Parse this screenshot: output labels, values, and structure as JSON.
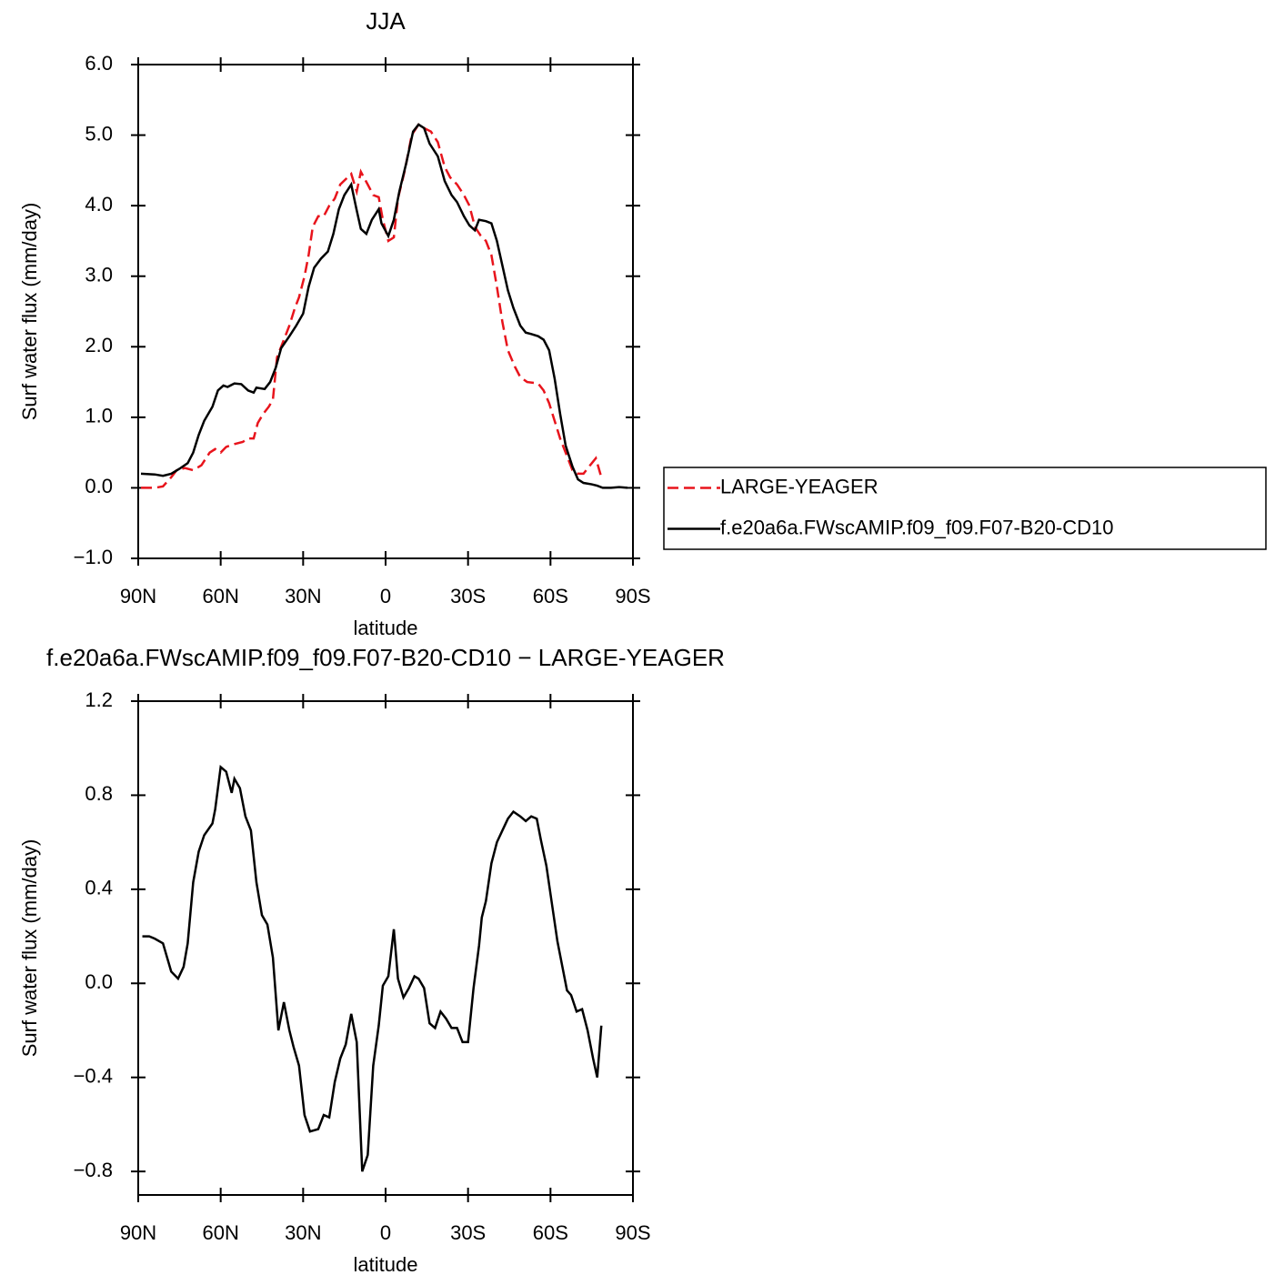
{
  "chart_data": [
    {
      "type": "line",
      "title": "JJA",
      "xlabel": "latitude",
      "ylabel": "Surf water flux (mm/day)",
      "xlim": [
        90,
        -90
      ],
      "xticks": [
        {
          "value": 90,
          "label": "90N"
        },
        {
          "value": 60,
          "label": "60N"
        },
        {
          "value": 30,
          "label": "30N"
        },
        0,
        {
          "value": -30,
          "label": "30S"
        },
        {
          "value": -60,
          "label": "60S"
        },
        {
          "value": -90,
          "label": "90S"
        }
      ],
      "ylim": [
        -1,
        6
      ],
      "yticks": [
        {
          "value": -1,
          "label": "−1.0"
        },
        {
          "value": 0,
          "label": "0.0"
        },
        {
          "value": 1,
          "label": "1.0"
        },
        {
          "value": 2,
          "label": "2.0"
        },
        {
          "value": 3,
          "label": "3.0"
        },
        {
          "value": 4,
          "label": "4.0"
        },
        {
          "value": 5,
          "label": "5.0"
        },
        {
          "value": 6,
          "label": "6.0"
        }
      ],
      "legend": "right",
      "series": [
        {
          "name": "LARGE-YEAGER",
          "color": "#e8141c",
          "dash": true,
          "x": [
            89,
            84,
            81,
            78,
            76,
            73,
            70,
            67,
            64,
            62,
            60,
            58,
            55,
            52,
            50,
            48,
            46.5,
            44.5,
            42.5,
            41,
            39.5,
            37,
            35,
            33,
            31.5,
            29.5,
            28,
            26.5,
            24.5,
            22.5,
            20.5,
            18.5,
            16.5,
            12.5,
            10.5,
            9,
            6.5,
            4.5,
            2.5,
            1,
            -1,
            -3,
            -4.5,
            -7,
            -9.5,
            -12,
            -14,
            -16.5,
            -19,
            -21.5,
            -23.5,
            -26,
            -28.5,
            -30.5,
            -32.5,
            -34.5,
            -36.5,
            -38.5,
            -40.5,
            -42.5,
            -44.5,
            -47,
            -49,
            -51.5,
            -55.5,
            -57.5,
            -59.5,
            -61.5,
            -63.5,
            -66,
            -68,
            -70,
            -72,
            -74,
            -76.5,
            -78.5
          ],
          "values": [
            0,
            0,
            0.02,
            0.15,
            0.25,
            0.28,
            0.25,
            0.32,
            0.5,
            0.55,
            0.5,
            0.58,
            0.62,
            0.65,
            0.7,
            0.7,
            0.92,
            1.05,
            1.15,
            1.25,
            1.85,
            2.1,
            2.3,
            2.55,
            2.7,
            3.0,
            3.3,
            3.7,
            3.85,
            3.85,
            4.0,
            4.1,
            4.3,
            4.45,
            4.2,
            4.48,
            4.3,
            4.15,
            4.12,
            3.8,
            3.5,
            3.55,
            4.1,
            4.5,
            5.0,
            5.15,
            5.1,
            5.05,
            4.9,
            4.55,
            4.4,
            4.3,
            4.15,
            4.0,
            3.7,
            3.58,
            3.5,
            3.3,
            2.85,
            2.35,
            1.95,
            1.72,
            1.57,
            1.5,
            1.48,
            1.38,
            1.2,
            0.95,
            0.7,
            0.45,
            0.25,
            0.2,
            0.2,
            0.3,
            0.42,
            0.15
          ]
        },
        {
          "name": "f.e20a6a.FWscAMIP.f09_f09.F07-B20-CD10",
          "color": "#000000",
          "dash": false,
          "x": [
            89,
            84,
            81,
            78,
            75,
            72,
            70,
            68,
            66,
            63,
            61,
            59,
            57.5,
            55,
            52.5,
            50,
            48,
            47,
            44,
            42,
            40,
            38,
            35,
            32.5,
            30,
            28,
            26,
            23.5,
            21,
            19,
            17,
            15,
            12.5,
            10.6,
            9,
            7,
            5,
            2.5,
            1.5,
            -1,
            -3,
            -5,
            -7.5,
            -10,
            -12,
            -14,
            -16,
            -19,
            -21.5,
            -24,
            -26,
            -28.5,
            -30.5,
            -32.5,
            -34,
            -36.5,
            -38.5,
            -40.5,
            -42.5,
            -44.5,
            -46.5,
            -49,
            -51,
            -53,
            -55.5,
            -57.5,
            -59.5,
            -61.5,
            -63.5,
            -65.5,
            -68,
            -70,
            -72,
            -75,
            -77,
            -79,
            -82,
            -85,
            -88
          ],
          "values": [
            0.2,
            0.19,
            0.17,
            0.2,
            0.27,
            0.35,
            0.5,
            0.75,
            0.95,
            1.15,
            1.38,
            1.45,
            1.43,
            1.48,
            1.47,
            1.38,
            1.35,
            1.42,
            1.4,
            1.5,
            1.7,
            1.98,
            2.15,
            2.3,
            2.47,
            2.85,
            3.12,
            3.25,
            3.35,
            3.6,
            3.95,
            4.15,
            4.3,
            3.95,
            3.67,
            3.6,
            3.8,
            3.95,
            3.75,
            3.57,
            3.8,
            4.2,
            4.6,
            5.05,
            5.15,
            5.1,
            4.88,
            4.7,
            4.35,
            4.15,
            4.05,
            3.85,
            3.72,
            3.65,
            3.8,
            3.78,
            3.75,
            3.5,
            3.15,
            2.8,
            2.55,
            2.3,
            2.2,
            2.18,
            2.15,
            2.1,
            1.95,
            1.55,
            1.05,
            0.6,
            0.3,
            0.12,
            0.07,
            0.05,
            0.03,
            0,
            0,
            0.01,
            0
          ]
        }
      ]
    },
    {
      "type": "line",
      "title": "f.e20a6a.FWscAMIP.f09_f09.F07-B20-CD10 − LARGE-YEAGER",
      "xlabel": "latitude",
      "ylabel": "Surf water flux (mm/day)",
      "xlim": [
        90,
        -90
      ],
      "xticks": [
        {
          "value": 90,
          "label": "90N"
        },
        {
          "value": 60,
          "label": "60N"
        },
        {
          "value": 30,
          "label": "30N"
        },
        0,
        {
          "value": -30,
          "label": "30S"
        },
        {
          "value": -60,
          "label": "60S"
        },
        {
          "value": -90,
          "label": "90S"
        }
      ],
      "ylim": [
        -0.9,
        1.2
      ],
      "yticks": [
        {
          "value": -0.8,
          "label": "−0.8"
        },
        {
          "value": -0.4,
          "label": "−0.4"
        },
        {
          "value": 0,
          "label": "0.0"
        },
        0.4,
        0.8,
        1.2
      ],
      "series": [
        {
          "color": "#000000",
          "dash": false,
          "x": [
            88.5,
            86,
            84,
            81,
            78,
            75.5,
            73.5,
            72,
            70,
            68,
            66,
            63,
            62,
            60,
            58,
            56,
            55,
            53,
            51,
            49,
            47,
            45,
            43,
            41,
            39,
            37,
            35,
            33.5,
            31.5,
            29.5,
            27.5,
            24.5,
            22.5,
            20.5,
            18.5,
            16.5,
            14.5,
            12.5,
            10.5,
            8.5,
            6.5,
            4.5,
            2.5,
            1,
            -1,
            -3,
            -4.5,
            -6.5,
            -8.5,
            -10.5,
            -12,
            -14,
            -16,
            -18,
            -20,
            -22,
            -24,
            -26,
            -28,
            -30,
            -32,
            -34,
            -35,
            -36.5,
            -38.5,
            -40.5,
            -42.5,
            -44.5,
            -46.5,
            -49,
            -51,
            -53,
            -55,
            -56.5,
            -58.5,
            -60.5,
            -62.5,
            -64.5,
            -66,
            -67.5,
            -69.5,
            -71.5,
            -73.5,
            -75.5,
            -77,
            -78.5
          ],
          "values": [
            0.2,
            0.2,
            0.19,
            0.17,
            0.05,
            0.02,
            0.07,
            0.17,
            0.43,
            0.56,
            0.63,
            0.68,
            0.74,
            0.92,
            0.9,
            0.81,
            0.87,
            0.83,
            0.71,
            0.65,
            0.43,
            0.29,
            0.25,
            0.11,
            -0.2,
            -0.08,
            -0.2,
            -0.27,
            -0.35,
            -0.56,
            -0.63,
            -0.62,
            -0.56,
            -0.57,
            -0.42,
            -0.32,
            -0.26,
            -0.13,
            -0.25,
            -0.8,
            -0.73,
            -0.35,
            -0.18,
            -0.01,
            0.03,
            0.23,
            0.02,
            -0.06,
            -0.02,
            0.03,
            0.02,
            -0.02,
            -0.17,
            -0.19,
            -0.12,
            -0.15,
            -0.19,
            -0.19,
            -0.25,
            -0.25,
            -0.02,
            0.16,
            0.28,
            0.35,
            0.51,
            0.6,
            0.65,
            0.7,
            0.73,
            0.71,
            0.69,
            0.71,
            0.7,
            0.61,
            0.5,
            0.34,
            0.18,
            0.06,
            -0.03,
            -0.05,
            -0.12,
            -0.11,
            -0.2,
            -0.32,
            -0.4,
            -0.18
          ]
        }
      ]
    }
  ]
}
